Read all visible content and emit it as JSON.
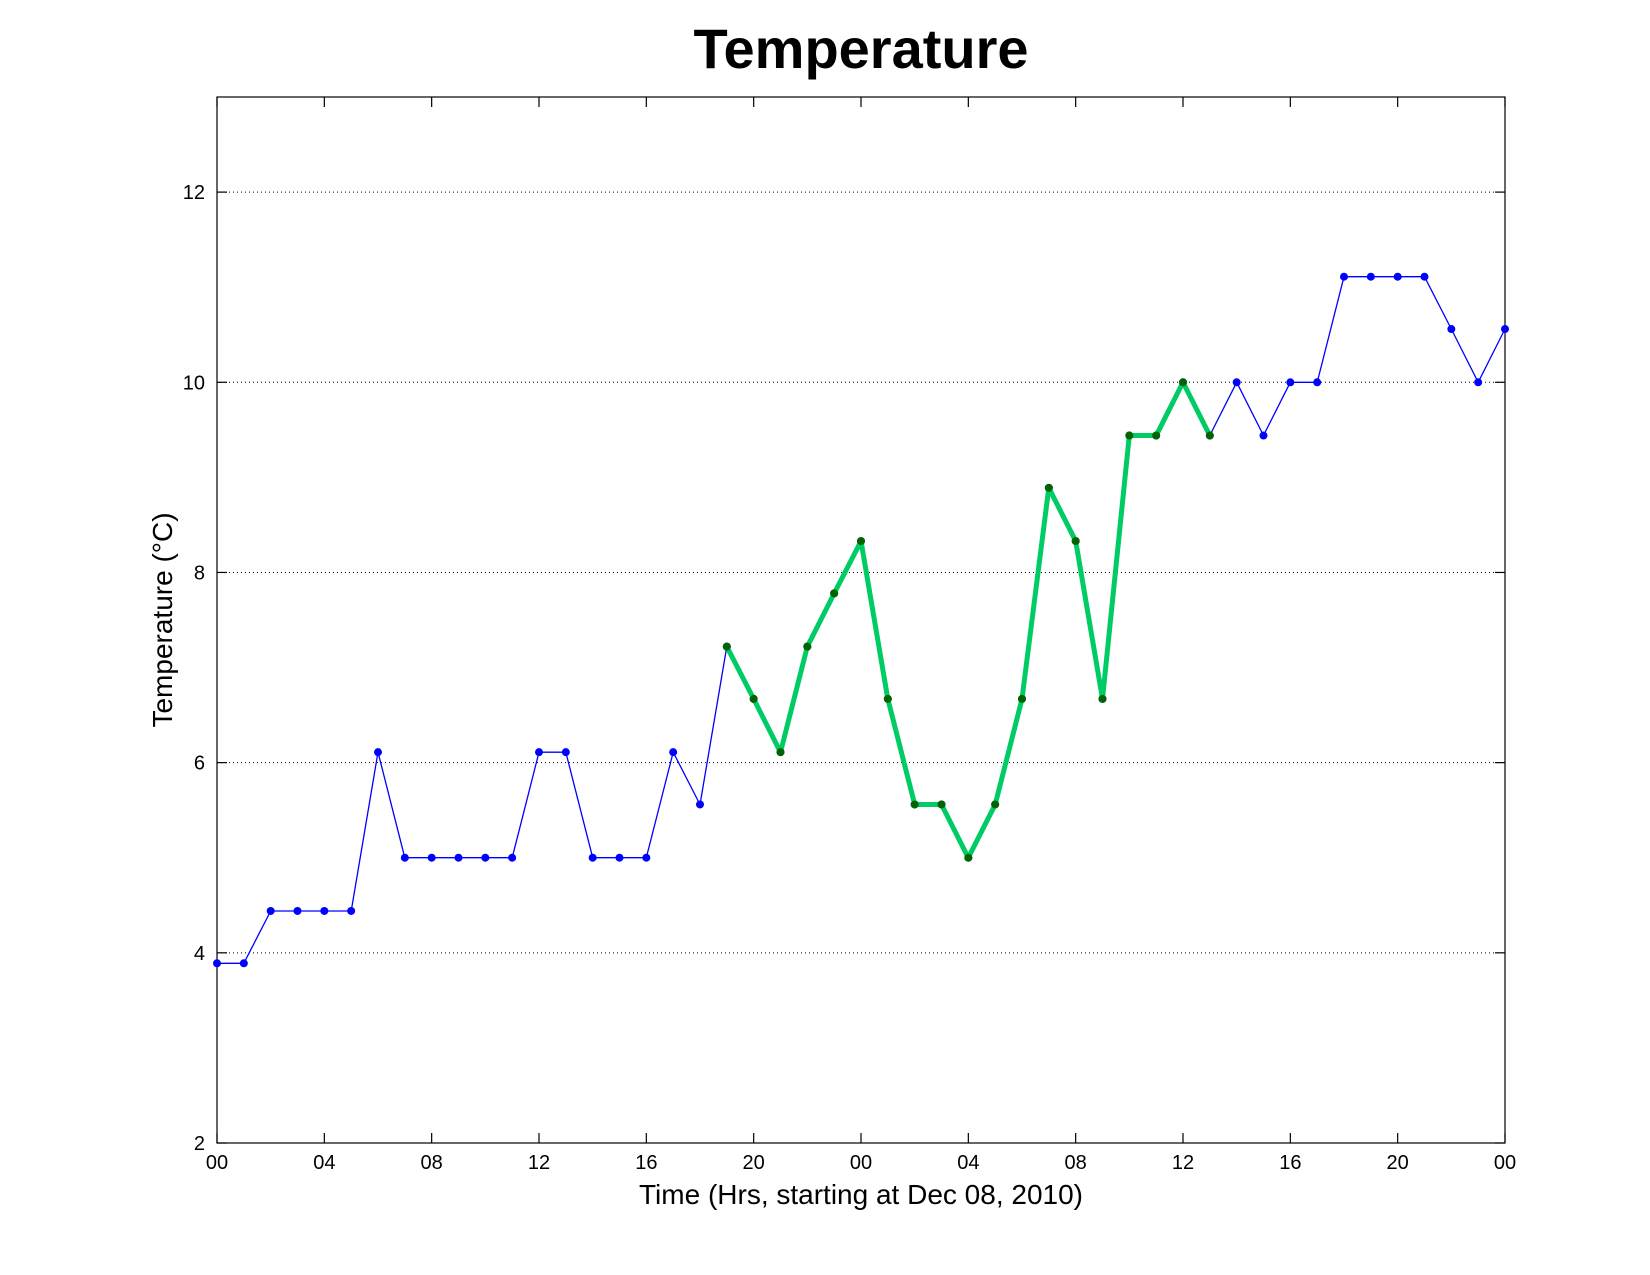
{
  "chart_data": {
    "type": "line",
    "title": "Temperature",
    "xlabel": "Time (Hrs, starting at Dec 08, 2010)",
    "ylabel": "Temperature (°C)",
    "xlim": [
      0,
      48
    ],
    "ylim": [
      2,
      13
    ],
    "x_tick_values": [
      0,
      4,
      8,
      12,
      16,
      20,
      24,
      28,
      32,
      36,
      40,
      44,
      48
    ],
    "x_tick_labels": [
      "00",
      "04",
      "08",
      "12",
      "16",
      "20",
      "00",
      "04",
      "08",
      "12",
      "16",
      "20",
      "00"
    ],
    "y_tick_values": [
      2,
      4,
      6,
      8,
      10,
      12
    ],
    "y_tick_labels": [
      "2",
      "4",
      "6",
      "8",
      "10",
      "12"
    ],
    "grid": "horizontal dotted",
    "series": [
      {
        "color": "#0000ff",
        "marker_color": "#0000ff",
        "x": [
          0,
          1,
          2,
          3,
          4,
          5,
          6,
          7,
          8,
          9,
          10,
          11,
          12,
          13,
          14,
          15,
          16,
          17,
          18,
          19,
          20,
          21,
          22,
          23,
          24,
          25,
          26,
          27,
          28,
          29,
          30,
          31,
          32,
          33,
          34,
          35,
          36,
          37,
          38,
          39,
          40,
          41,
          42,
          43,
          44,
          45,
          46,
          47,
          48
        ],
        "y": [
          3.89,
          3.89,
          4.44,
          4.44,
          4.44,
          4.44,
          6.11,
          5.0,
          5.0,
          5.0,
          5.0,
          5.0,
          6.11,
          6.11,
          5.0,
          5.0,
          5.0,
          6.11,
          5.56,
          7.22,
          6.67,
          6.11,
          7.22,
          7.78,
          8.33,
          6.67,
          5.56,
          5.56,
          5.0,
          5.56,
          6.67,
          8.89,
          8.33,
          6.67,
          9.44,
          9.44,
          10.0,
          9.44,
          10.0,
          9.44,
          10.0,
          10.0,
          11.11,
          11.11,
          11.11,
          11.11,
          10.56,
          10.0,
          10.56
        ]
      },
      {
        "color": "#00cc66",
        "marker_color": "#006400",
        "x": [
          19,
          20,
          21,
          22,
          23,
          24,
          25,
          26,
          27,
          28,
          29,
          30,
          31,
          32,
          33,
          34,
          35,
          36,
          37
        ],
        "y": [
          7.22,
          6.67,
          6.11,
          7.22,
          7.78,
          8.33,
          6.67,
          5.56,
          5.56,
          5.0,
          5.56,
          6.67,
          8.89,
          8.33,
          6.67,
          9.44,
          9.44,
          10.0,
          9.44
        ]
      }
    ]
  }
}
